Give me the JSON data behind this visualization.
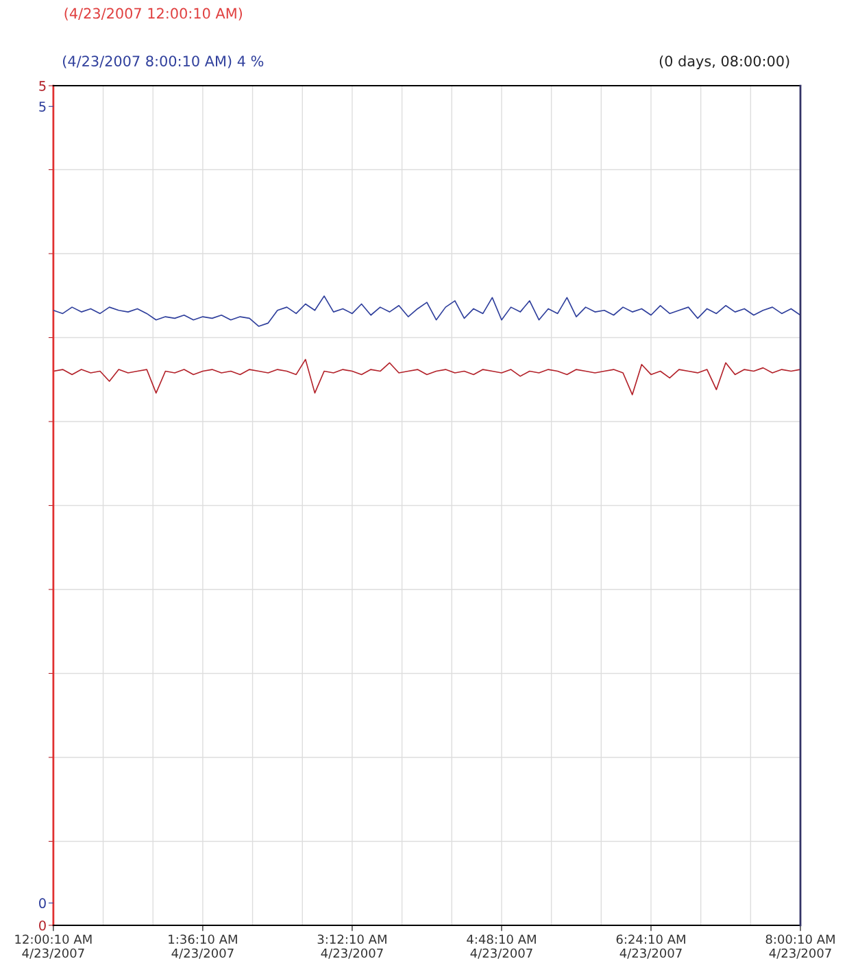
{
  "chart_data": {
    "type": "line",
    "annotations": [
      "(4/23/2007 12:00:10 AM)",
      "(4/23/2007 8:00:10 AM) 4 %",
      "(0 days, 08:00:00)"
    ],
    "categories": [
      "12:00:10 AM\n4/23/2007",
      null,
      null,
      null,
      null,
      null,
      null,
      null,
      null,
      null,
      null,
      null,
      null,
      null,
      null,
      null,
      "1:36:10 AM\n4/23/2007",
      null,
      null,
      null,
      null,
      null,
      null,
      null,
      null,
      null,
      null,
      null,
      null,
      null,
      null,
      null,
      "3:12:10 AM\n4/23/2007",
      null,
      null,
      null,
      null,
      null,
      null,
      null,
      null,
      null,
      null,
      null,
      null,
      null,
      null,
      null,
      "4:48:10 AM\n4/23/2007",
      null,
      null,
      null,
      null,
      null,
      null,
      null,
      null,
      null,
      null,
      null,
      null,
      null,
      null,
      null,
      "6:24:10 AM\n4/23/2007",
      null,
      null,
      null,
      null,
      null,
      null,
      null,
      null,
      null,
      null,
      null,
      null,
      null,
      null,
      null,
      "8:00:10 AM\n4/23/2007"
    ],
    "series": [
      {
        "color": "#b3222a",
        "values": [
          3.3,
          3.31,
          3.28,
          3.31,
          3.29,
          3.3,
          3.24,
          3.31,
          3.29,
          3.3,
          3.31,
          3.17,
          3.3,
          3.29,
          3.31,
          3.28,
          3.3,
          3.31,
          3.29,
          3.3,
          3.28,
          3.31,
          3.3,
          3.29,
          3.31,
          3.3,
          3.28,
          3.37,
          3.17,
          3.3,
          3.29,
          3.31,
          3.3,
          3.28,
          3.31,
          3.3,
          3.35,
          3.29,
          3.3,
          3.31,
          3.28,
          3.3,
          3.31,
          3.29,
          3.3,
          3.28,
          3.31,
          3.3,
          3.29,
          3.31,
          3.27,
          3.3,
          3.29,
          3.31,
          3.3,
          3.28,
          3.31,
          3.3,
          3.29,
          3.3,
          3.31,
          3.29,
          3.16,
          3.34,
          3.28,
          3.3,
          3.26,
          3.31,
          3.3,
          3.29,
          3.31,
          3.19,
          3.35,
          3.28,
          3.31,
          3.3,
          3.32,
          3.29,
          3.31,
          3.3,
          3.31
        ]
      },
      {
        "color": "#2f3f9c",
        "axis": "y2",
        "values": [
          3.72,
          3.7,
          3.74,
          3.71,
          3.73,
          3.7,
          3.74,
          3.72,
          3.71,
          3.73,
          3.7,
          3.66,
          3.68,
          3.67,
          3.69,
          3.66,
          3.68,
          3.67,
          3.69,
          3.66,
          3.68,
          3.67,
          3.62,
          3.64,
          3.72,
          3.74,
          3.7,
          3.76,
          3.72,
          3.81,
          3.71,
          3.73,
          3.7,
          3.76,
          3.69,
          3.74,
          3.71,
          3.75,
          3.68,
          3.73,
          3.77,
          3.66,
          3.74,
          3.78,
          3.67,
          3.73,
          3.7,
          3.8,
          3.66,
          3.74,
          3.71,
          3.78,
          3.66,
          3.73,
          3.7,
          3.8,
          3.68,
          3.74,
          3.71,
          3.72,
          3.69,
          3.74,
          3.71,
          3.73,
          3.69,
          3.75,
          3.7,
          3.72,
          3.74,
          3.67,
          3.73,
          3.7,
          3.75,
          3.71,
          3.73,
          3.69,
          3.72,
          3.74,
          3.7,
          3.73,
          3.69
        ]
      }
    ],
    "ylim": [
      0,
      5
    ],
    "yticks": [
      0,
      {
        "value": 0.5,
        "label": null
      },
      {
        "value": 1,
        "label": null
      },
      {
        "value": 1.5,
        "label": null
      },
      {
        "value": 2,
        "label": null
      },
      {
        "value": 2.5,
        "label": null
      },
      {
        "value": 3,
        "label": null
      },
      {
        "value": 3.5,
        "label": null
      },
      {
        "value": 4,
        "label": null
      },
      {
        "value": 4.5,
        "label": null
      },
      5
    ],
    "y2lim": [
      -0.14,
      5.13
    ],
    "y2ticks": [
      0,
      5
    ],
    "grid": true,
    "line_style": "solid"
  }
}
